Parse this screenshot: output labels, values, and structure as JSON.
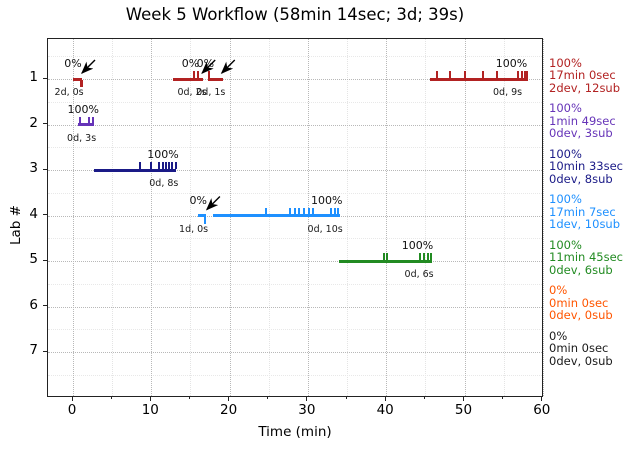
{
  "title": "Week 5 Workflow (58min 14sec; 3d; 39s)",
  "chart_data": {
    "type": "timeline",
    "title": "Week 5 Workflow (58min 14sec; 3d; 39s)",
    "xlabel": "Time (min)",
    "ylabel": "Lab #",
    "xlim": [
      0,
      60
    ],
    "x_major_ticks": [
      0,
      10,
      20,
      30,
      40,
      50,
      60
    ],
    "x_minor_step": 5,
    "y_categories": [
      "1",
      "2",
      "3",
      "4",
      "5",
      "6",
      "7"
    ],
    "grid": true,
    "legend_position": "right",
    "labs": [
      {
        "lab": "1",
        "color": "#b22222",
        "legend_percent": "100%",
        "legend_time": "17min 0sec",
        "legend_counts": "2dev, 12sub",
        "segments": [
          {
            "start": 0.0,
            "end": 1.2,
            "percent_label": "0%",
            "percent_x": 0.0,
            "count_label": "2d, 0s",
            "count_x": -0.5,
            "subs": [],
            "devs": [
              1.0,
              1.15
            ],
            "arrow_x": 1.15
          },
          {
            "start": 12.8,
            "end": 16.6,
            "percent_label": "0%",
            "percent_x": 15.0,
            "count_label": "0d, 2s",
            "count_x": 15.2,
            "subs": [
              15.5,
              16.0
            ],
            "devs": [],
            "arrow_x": 16.5
          },
          {
            "start": 17.3,
            "end": 19.2,
            "percent_label": "0%",
            "percent_x": 16.9,
            "count_label": "0d, 1s",
            "count_x": 17.6,
            "subs": [
              17.4
            ],
            "devs": [],
            "arrow_x": 19.0
          },
          {
            "start": 45.6,
            "end": 58.1,
            "percent_label": "100%",
            "percent_x": 56.0,
            "count_label": "0d, 9s",
            "count_x": 55.5,
            "subs": [
              46.5,
              48.1,
              50.1,
              52.3,
              54.2,
              56.8,
              57.3,
              57.7,
              58.0
            ],
            "devs": []
          }
        ]
      },
      {
        "lab": "2",
        "color": "#6634b8",
        "legend_percent": "100%",
        "legend_time": "1min 49sec",
        "legend_counts": "0dev, 3sub",
        "segments": [
          {
            "start": 0.7,
            "end": 2.7,
            "percent_label": "100%",
            "percent_x": 1.3,
            "count_label": "0d, 3s",
            "count_x": 1.1,
            "subs": [
              0.9,
              2.1,
              2.5
            ],
            "devs": []
          }
        ]
      },
      {
        "lab": "3",
        "color": "#1a1a87",
        "legend_percent": "100%",
        "legend_time": "10min 33sec",
        "legend_counts": "0dev, 8sub",
        "segments": [
          {
            "start": 2.7,
            "end": 13.2,
            "percent_label": "100%",
            "percent_x": 11.5,
            "count_label": "0d, 8s",
            "count_x": 11.6,
            "subs": [
              8.5,
              10.0,
              11.0,
              11.5,
              11.9,
              12.3,
              12.7,
              13.1
            ],
            "devs": []
          }
        ]
      },
      {
        "lab": "4",
        "color": "#1e90ff",
        "legend_percent": "100%",
        "legend_time": "17min 7sec",
        "legend_counts": "1dev, 10sub",
        "segments": [
          {
            "start": 16.0,
            "end": 17.0,
            "percent_label": "0%",
            "percent_x": 16.0,
            "count_label": "1d, 0s",
            "count_x": 15.4,
            "subs": [],
            "devs": [
              16.9
            ],
            "arrow_x": 17.1
          },
          {
            "start": 17.9,
            "end": 34.1,
            "percent_label": "100%",
            "percent_x": 32.4,
            "count_label": "0d, 10s",
            "count_x": 32.2,
            "subs": [
              24.7,
              27.7,
              28.3,
              28.9,
              29.5,
              30.1,
              30.7,
              33.0,
              33.4,
              33.9
            ],
            "devs": []
          }
        ]
      },
      {
        "lab": "5",
        "color": "#228b22",
        "legend_percent": "100%",
        "legend_time": "11min 45sec",
        "legend_counts": "0dev, 6sub",
        "segments": [
          {
            "start": 34.0,
            "end": 45.9,
            "percent_label": "100%",
            "percent_x": 44.0,
            "count_label": "0d, 6s",
            "count_x": 44.2,
            "subs": [
              39.7,
              40.1,
              44.3,
              44.8,
              45.3,
              45.7
            ],
            "devs": []
          }
        ]
      },
      {
        "lab": "6",
        "color": "#ff5500",
        "legend_percent": "0%",
        "legend_time": "0min 0sec",
        "legend_counts": "0dev, 0sub",
        "segments": []
      },
      {
        "lab": "7",
        "color": "#1a1a1a",
        "legend_percent": "0%",
        "legend_time": "0min 0sec",
        "legend_counts": "0dev, 0sub",
        "segments": []
      }
    ]
  }
}
